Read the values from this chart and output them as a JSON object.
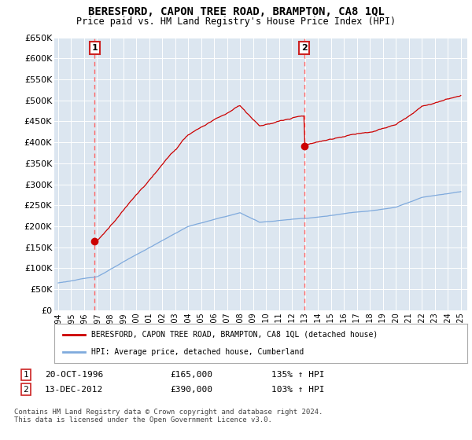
{
  "title": "BERESFORD, CAPON TREE ROAD, BRAMPTON, CA8 1QL",
  "subtitle": "Price paid vs. HM Land Registry's House Price Index (HPI)",
  "ylim": [
    0,
    650000
  ],
  "yticks": [
    0,
    50000,
    100000,
    150000,
    200000,
    250000,
    300000,
    350000,
    400000,
    450000,
    500000,
    550000,
    600000,
    650000
  ],
  "sale1_date": 1996.8,
  "sale1_price": 165000,
  "sale2_date": 2012.95,
  "sale2_price": 390000,
  "legend_line1": "BERESFORD, CAPON TREE ROAD, BRAMPTON, CA8 1QL (detached house)",
  "legend_line2": "HPI: Average price, detached house, Cumberland",
  "annotation1_date": "20-OCT-1996",
  "annotation1_price": "£165,000",
  "annotation1_hpi": "135% ↑ HPI",
  "annotation2_date": "13-DEC-2012",
  "annotation2_price": "£390,000",
  "annotation2_hpi": "103% ↑ HPI",
  "footer": "Contains HM Land Registry data © Crown copyright and database right 2024.\nThis data is licensed under the Open Government Licence v3.0.",
  "hpi_line_color": "#7faadd",
  "price_line_color": "#cc0000",
  "vline_color": "#ff6666",
  "background_color": "#ffffff",
  "plot_bg_color": "#dce6f0"
}
